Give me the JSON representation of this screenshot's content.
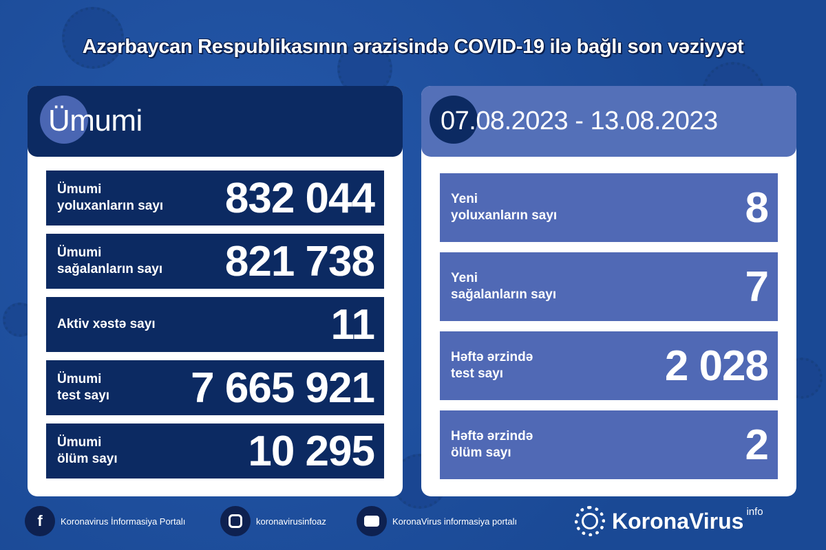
{
  "title": "Azərbaycan Respublikasının ərazisində COVID-19 ilə bağlı son vəziyyət",
  "colors": {
    "background": "#1f4f9f",
    "left_header": "#0c2a62",
    "right_header": "#5470b8",
    "left_row": "#0c2a62",
    "right_row": "#5069b5"
  },
  "total": {
    "header": "Ümumi",
    "rows": [
      {
        "label1": "Ümumi",
        "label2": "yoluxanların sayı",
        "value": "832 044"
      },
      {
        "label1": "Ümumi",
        "label2": "sağalanların sayı",
        "value": "821 738"
      },
      {
        "label1": "Aktiv xəstə sayı",
        "label2": "",
        "value": "11"
      },
      {
        "label1": "Ümumi",
        "label2": "test sayı",
        "value": "7 665 921"
      },
      {
        "label1": "Ümumi",
        "label2": "ölüm sayı",
        "value": "10 295"
      }
    ]
  },
  "weekly": {
    "header": "07.08.2023 - 13.08.2023",
    "rows": [
      {
        "label1": "Yeni",
        "label2": "yoluxanların sayı",
        "value": "8"
      },
      {
        "label1": "Yeni",
        "label2": "sağalanların sayı",
        "value": "7"
      },
      {
        "label1": "Həftə ərzində",
        "label2": "test sayı",
        "value": "2 028"
      },
      {
        "label1": "Həftə ərzində",
        "label2": "ölüm sayı",
        "value": "2"
      }
    ]
  },
  "footer": {
    "facebook": "Koronavirus İnformasiya Portalı",
    "instagram": "koronavirusinfoaz",
    "youtube": "KoronaVirus informasiya portalı",
    "logo": "KoronaVirus",
    "logo_sup": "info"
  }
}
